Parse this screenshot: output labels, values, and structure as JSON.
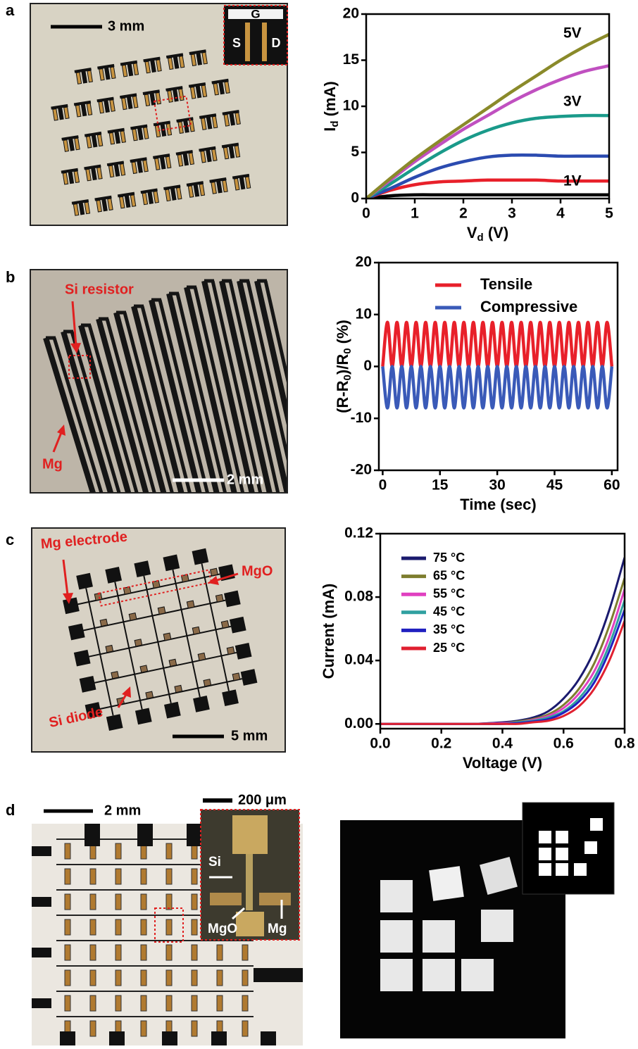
{
  "panel_labels": [
    "a",
    "b",
    "c",
    "d"
  ],
  "photos": {
    "a": {
      "scale_bar": "3 mm",
      "inset_labels": [
        "G",
        "S",
        "D"
      ]
    },
    "b": {
      "labels": [
        "Si resistor",
        "Mg"
      ],
      "scale_bar": "2 mm"
    },
    "c": {
      "labels": [
        "Mg electrode",
        "MgO",
        "Si diode"
      ],
      "scale_bar": "5 mm"
    },
    "d": {
      "scale_bar": "2 mm",
      "inset_scale_bar": "200 μm",
      "inset_labels": [
        "Si",
        "MgO",
        "Mg"
      ]
    }
  },
  "chart_data": [
    {
      "type": "line",
      "x_label": [
        "V",
        "d",
        " (V)"
      ],
      "y_label": [
        "I",
        "d",
        " (mA)"
      ],
      "annotations": [
        "5V",
        "3V",
        "1V"
      ],
      "x": [
        0,
        0.5,
        1,
        1.5,
        2,
        2.5,
        3,
        3.5,
        4,
        4.5,
        5
      ],
      "series": [
        {
          "color": "#000000",
          "values": [
            0,
            0.3,
            0.4,
            0.4,
            0.4,
            0.4,
            0.4,
            0.4,
            0.4,
            0.4,
            0.4
          ]
        },
        {
          "color": "#e8202a",
          "values": [
            0,
            0.9,
            1.5,
            1.8,
            1.9,
            2.0,
            2.0,
            2.0,
            1.9,
            1.9,
            1.9
          ]
        },
        {
          "color": "#2b4bb0",
          "values": [
            0,
            1.1,
            2.3,
            3.3,
            4.0,
            4.5,
            4.7,
            4.7,
            4.6,
            4.6,
            4.6
          ]
        },
        {
          "color": "#1a9a8a",
          "values": [
            0,
            1.6,
            3.3,
            4.9,
            6.3,
            7.4,
            8.2,
            8.7,
            8.9,
            9.0,
            9.0
          ]
        },
        {
          "color": "#c050c0",
          "values": [
            0,
            2.0,
            4.0,
            5.8,
            7.5,
            9.0,
            10.5,
            11.8,
            12.9,
            13.8,
            14.4
          ]
        },
        {
          "color": "#8a8a2a",
          "values": [
            0,
            2.2,
            4.3,
            6.2,
            8.0,
            9.8,
            11.6,
            13.3,
            15.0,
            16.5,
            17.8
          ]
        }
      ],
      "xlim": [
        0,
        5
      ],
      "ylim": [
        0,
        20
      ],
      "xticks": [
        0,
        1,
        2,
        3,
        4,
        5
      ],
      "yticks": [
        0,
        5,
        10,
        15,
        20
      ]
    },
    {
      "type": "line",
      "x_label": [
        "Time (sec)"
      ],
      "y_label": [
        "(R-R",
        "0",
        ")/R",
        "0",
        " (%)"
      ],
      "x": [
        0,
        1.25,
        2.5,
        3.75,
        5,
        6.25,
        7.5,
        8.75,
        10,
        11.25,
        12.5,
        13.75,
        15,
        16.25,
        17.5,
        18.75,
        20,
        21.25,
        22.5,
        23.75,
        25,
        26.25,
        27.5,
        28.75,
        30,
        31.25,
        32.5,
        33.75,
        35,
        36.25,
        37.5,
        38.75,
        40,
        41.25,
        42.5,
        43.75,
        45,
        46.25,
        47.5,
        48.75,
        50,
        51.25,
        52.5,
        53.75,
        55,
        56.25,
        57.5,
        58.75,
        60
      ],
      "series": [
        {
          "name": "Tensile",
          "color": "#e8202a",
          "values": [
            0,
            8.5,
            0,
            8.5,
            0,
            8.5,
            0,
            8.5,
            0,
            8.5,
            0,
            8.5,
            0,
            8.5,
            0,
            8.5,
            0,
            8.5,
            0,
            8.5,
            0,
            8.5,
            0,
            8.5,
            0,
            8.5,
            0,
            8.5,
            0,
            8.5,
            0,
            8.5,
            0,
            8.5,
            0,
            8.5,
            0,
            8.5,
            0,
            8.5,
            0,
            8.5,
            0,
            8.5,
            0,
            8.5,
            0,
            8.5,
            0
          ]
        },
        {
          "name": "Compressive",
          "color": "#3a5ab8",
          "values": [
            0,
            -8,
            0,
            -8,
            0,
            -8,
            0,
            -8,
            0,
            -8,
            0,
            -8,
            0,
            -8,
            0,
            -8,
            0,
            -8,
            0,
            -8,
            0,
            -8,
            0,
            -8,
            0,
            -8,
            0,
            -8,
            0,
            -8,
            0,
            -8,
            0,
            -8,
            0,
            -8,
            0,
            -8,
            0,
            -8,
            0,
            -8,
            0,
            -8,
            0,
            -8,
            0,
            -8,
            0
          ]
        }
      ],
      "xlim": [
        -1,
        61.5
      ],
      "ylim": [
        -20,
        20
      ],
      "xticks": [
        0,
        15,
        30,
        45,
        60
      ],
      "yticks": [
        -20,
        -10,
        0,
        10,
        20
      ]
    },
    {
      "type": "line",
      "x_label": [
        "Voltage (V)"
      ],
      "y_label": [
        "Current (mA)"
      ],
      "x": [
        0,
        0.1,
        0.2,
        0.3,
        0.4,
        0.45,
        0.5,
        0.55,
        0.6,
        0.65,
        0.7,
        0.75,
        0.8
      ],
      "series": [
        {
          "name": "75 °C",
          "color": "#1a1a6e",
          "values": [
            0,
            0,
            0,
            0,
            0.001,
            0.002,
            0.004,
            0.008,
            0.016,
            0.028,
            0.046,
            0.072,
            0.105
          ]
        },
        {
          "name": "65 °C",
          "color": "#7d7d2e",
          "values": [
            0,
            0,
            0,
            0,
            0.0005,
            0.0015,
            0.003,
            0.006,
            0.012,
            0.022,
            0.038,
            0.062,
            0.092
          ]
        },
        {
          "name": "55 °C",
          "color": "#e040c0",
          "values": [
            0,
            0,
            0,
            0,
            0.0005,
            0.001,
            0.0025,
            0.005,
            0.01,
            0.019,
            0.033,
            0.055,
            0.085
          ]
        },
        {
          "name": "45 °C",
          "color": "#30a0a0",
          "values": [
            0,
            0,
            0,
            0,
            0,
            0.001,
            0.002,
            0.004,
            0.008,
            0.016,
            0.029,
            0.05,
            0.078
          ]
        },
        {
          "name": "35 °C",
          "color": "#2020c0",
          "values": [
            0,
            0,
            0,
            0,
            0,
            0.0005,
            0.0015,
            0.003,
            0.007,
            0.014,
            0.026,
            0.046,
            0.072
          ]
        },
        {
          "name": "25 °C",
          "color": "#e02030",
          "values": [
            0,
            0,
            0,
            0,
            0,
            0,
            0.001,
            0.002,
            0.005,
            0.011,
            0.022,
            0.04,
            0.065
          ]
        }
      ],
      "xlim": [
        0,
        0.8
      ],
      "ylim": [
        -0.003,
        0.12
      ],
      "xticks": [
        {
          "value": 0,
          "label": "0.0"
        },
        0.2,
        0.4,
        0.6,
        0.8
      ],
      "yticks": [
        {
          "value": 0,
          "label": "0.00"
        },
        0.04,
        0.08,
        0.12
      ]
    }
  ]
}
